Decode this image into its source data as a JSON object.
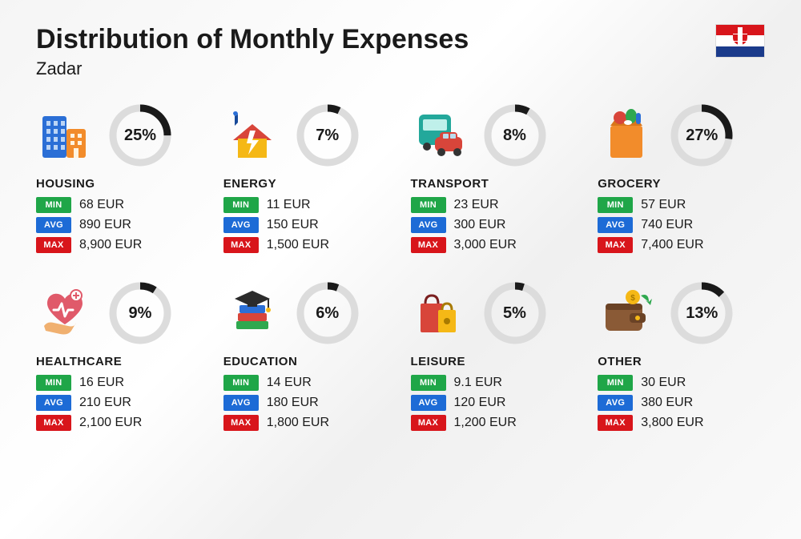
{
  "title": "Distribution of Monthly Expenses",
  "subtitle": "Zadar",
  "flag": {
    "stripes": [
      "#d8151b",
      "#ffffff",
      "#1b3b8b"
    ],
    "coat_red": "#d8151b",
    "coat_white": "#ffffff"
  },
  "ring": {
    "track_color": "#dcdcdc",
    "active_color": "#1a1a1a",
    "stroke_width": 9,
    "radius": 34
  },
  "badges": {
    "min": {
      "label": "MIN",
      "bg": "#1fa648"
    },
    "avg": {
      "label": "AVG",
      "bg": "#1d6bd6"
    },
    "max": {
      "label": "MAX",
      "bg": "#d8151b"
    }
  },
  "categories": [
    {
      "key": "housing",
      "name": "HOUSING",
      "percent": 25,
      "percent_label": "25%",
      "min": "68 EUR",
      "avg": "890 EUR",
      "max": "8,900 EUR",
      "icon": "buildings"
    },
    {
      "key": "energy",
      "name": "ENERGY",
      "percent": 7,
      "percent_label": "7%",
      "min": "11 EUR",
      "avg": "150 EUR",
      "max": "1,500 EUR",
      "icon": "energy-house"
    },
    {
      "key": "transport",
      "name": "TRANSPORT",
      "percent": 8,
      "percent_label": "8%",
      "min": "23 EUR",
      "avg": "300 EUR",
      "max": "3,000 EUR",
      "icon": "bus-car"
    },
    {
      "key": "grocery",
      "name": "GROCERY",
      "percent": 27,
      "percent_label": "27%",
      "min": "57 EUR",
      "avg": "740 EUR",
      "max": "7,400 EUR",
      "icon": "grocery-bag"
    },
    {
      "key": "healthcare",
      "name": "HEALTHCARE",
      "percent": 9,
      "percent_label": "9%",
      "min": "16 EUR",
      "avg": "210 EUR",
      "max": "2,100 EUR",
      "icon": "heart-hand"
    },
    {
      "key": "education",
      "name": "EDUCATION",
      "percent": 6,
      "percent_label": "6%",
      "min": "14 EUR",
      "avg": "180 EUR",
      "max": "1,800 EUR",
      "icon": "grad-books"
    },
    {
      "key": "leisure",
      "name": "LEISURE",
      "percent": 5,
      "percent_label": "5%",
      "min": "9.1 EUR",
      "avg": "120 EUR",
      "max": "1,200 EUR",
      "icon": "shopping-bags"
    },
    {
      "key": "other",
      "name": "OTHER",
      "percent": 13,
      "percent_label": "13%",
      "min": "30 EUR",
      "avg": "380 EUR",
      "max": "3,800 EUR",
      "icon": "wallet"
    }
  ],
  "icon_colors": {
    "blue": "#2b6fd6",
    "dark_blue": "#184a99",
    "orange": "#f28c2b",
    "red": "#d8453a",
    "yellow": "#f5b816",
    "green": "#2fa84f",
    "teal": "#23a89b",
    "brown": "#8a5a36",
    "pink": "#e05a6a",
    "purple": "#5a4a9e",
    "light": "#bcd5f5"
  }
}
